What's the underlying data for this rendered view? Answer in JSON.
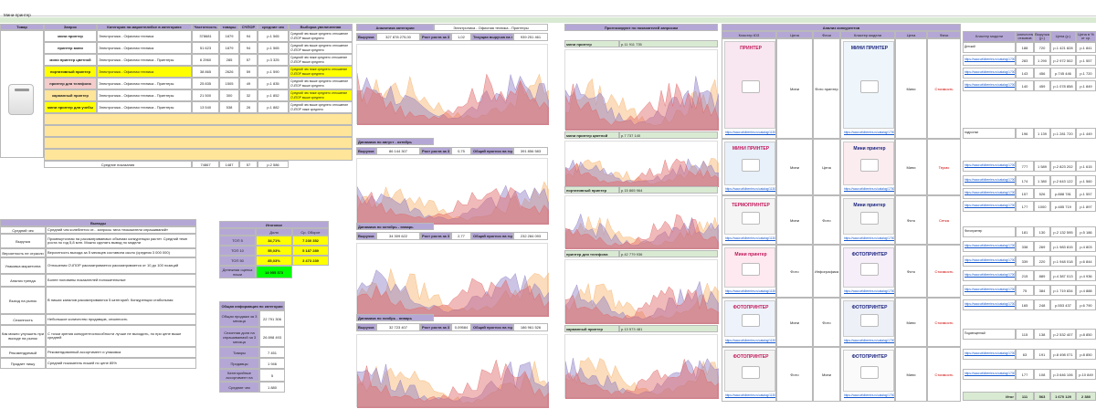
{
  "window": {
    "title_bar_color": "#ffffff",
    "sheet_title": "Мини-принтер"
  },
  "left_table": {
    "col_headers": [
      "Товар",
      "Запрос",
      "Категория на маркетплейсе в категориях",
      "Категория",
      "Частотность",
      "товары",
      "СЧПОР",
      "средние чек",
      "Выборка увеличенная"
    ],
    "rows": [
      {
        "query": "мини принтер",
        "category": "Электроника - Офисная техника",
        "freq": "378681",
        "goods": "1879",
        "spp": "94",
        "price": "р.1 565",
        "note": "Средний чек выше среднего отношение СЧПОР выше среднего"
      },
      {
        "query": "принтер мини",
        "category": "Электроника - Офисная техника",
        "freq": "51 623",
        "goods": "1879",
        "spp": "94",
        "price": "р.1 565",
        "note": "Средний чек выше среднего отношение СЧПОР выше среднего"
      },
      {
        "query": "мини принтер цветной",
        "category": "Электроника - Офисная техника - Принтеры",
        "freq": "6 2960",
        "goods": "285",
        "spp": "57",
        "price": "р.3 325",
        "note": "Средний чек ниже среднего отношение СЧПОР выше среднего"
      },
      {
        "query": "портативный принтер",
        "category": "Электроника - Офисная техника",
        "freq": "38 865",
        "goods": "2626",
        "spp": "59",
        "price": "р.1 590",
        "note": "Средний чек ниже среднего отношение СЧПОР выше среднего"
      },
      {
        "query": "принтер для телефона",
        "category": "Электроника - Офисная техника - Принтеры",
        "freq": "25 835",
        "goods": "1505",
        "spp": "49",
        "price": "р.1 835",
        "note": "Средний чек выше среднего отношение СЧПОР выше среднего"
      },
      {
        "query": "карманный принтер",
        "category": "Электроника - Офисная техника - Принтеры",
        "freq": "21 500",
        "goods": "300",
        "spp": "32",
        "price": "р.1 852",
        "note": "Средний чек ниже среднего отношение СЧПОР выше среднего"
      },
      {
        "query": "мини принтер для учебы",
        "category": "Электроника - Офисная техника - Принтеры",
        "freq": "13 540",
        "goods": "538",
        "spp": "26",
        "price": "р.1 882",
        "note": "Средний чек выше среднего отношение СЧПОР ниже среднего"
      }
    ],
    "avg_label": "Средние показания",
    "avg": {
      "freq": "74867",
      "goods": "1487",
      "spp": "57",
      "price": "р.2 586"
    }
  },
  "notes": {
    "title": "Выводы",
    "rows": [
      {
        "k": "Средний чек",
        "v": "Средний чек колеблется от... запросы типа «показатели спрашиваний»"
      },
      {
        "k": "Выручка",
        "v": "Промежуточная на рассматриваемых объемах конкуренции растет. Средний темп роста по год 5,8 млн. Можно сделать вывод по модели"
      },
      {
        "k": "Вероятность не отрасли",
        "v": "Вероятность выхода за 5 месяцев составила около (средняя 3 000 000)"
      },
      {
        "k": "Упаковка маркетинга",
        "v": "Отношения СЧПОР рассматривается рассматривается от 10 до 100 позиций"
      },
      {
        "k": "Анализ тренда",
        "v": "Более половины показателей положительные"
      },
      {
        "k": "Выход на рынок",
        "v": "В нишах каналов рассматриваются 5 категорий. Конкуренции стабильная"
      },
      {
        "k": "Сезонность",
        "v": "Небольшое количество продавцов, сезонность"
      },
      {
        "k": "Как можно улучшить при выходе на рынок",
        "v": "С точки зрения конкурентоспособности лучше не выходить, но при цене выше средней"
      },
      {
        "k": "Рекомендуемый",
        "v": "Рекомендованный ассортимент и упаковка"
      },
      {
        "k": "Продает нишу",
        "v": "Средний показатель нишей по цене 85%"
      }
    ]
  },
  "summary": {
    "title": "Итоговое",
    "headers": [
      "",
      "Доля",
      "Ср. Оборот"
    ],
    "rows": [
      {
        "k": "ТОП 5",
        "share": "34,71%",
        "turnover": "7 230 352"
      },
      {
        "k": "ТОП 10",
        "share": "55,03%",
        "turnover": "5 187 289"
      },
      {
        "k": "ТОП 50",
        "share": "85,03%",
        "turnover": "3 473 239"
      }
    ],
    "avg_k": "Денежная оценка ниши",
    "avg_v": "14 955 373"
  },
  "general": {
    "title": "Общая информация по категории",
    "rows": [
      {
        "k": "Общая продажи за 3 месяца",
        "v": "22 791 306"
      },
      {
        "k": "Сезонная доля на спрашиваемой за 3 месяца",
        "v": "26 898 493"
      },
      {
        "k": "Товары",
        "v": "7 451"
      },
      {
        "k": "Продавцы",
        "v": "1 946"
      },
      {
        "k": "Категорийные ассортимент на",
        "v": "5"
      },
      {
        "k": "Средние чек",
        "v": "1 880"
      }
    ]
  },
  "mid_panel": {
    "title": "Аналитика категории",
    "title2": "Электроника - Офисная техника - Принтеры",
    "blocks": [
      {
        "period": "Динамика по сентябрь - ноябрь",
        "rev_label": "Выручка",
        "rev": "327 878 275,00",
        "growth_label": "Рост роста за 3 мес",
        "growth": "1,02",
        "year_label": "Текущая выручка на год",
        "year": "939 251 461"
      },
      {
        "period": "Динамика по август - октябрь",
        "rev_label": "Выручка",
        "rev": "86 144 307",
        "growth_label": "Рост роста за 3 мес",
        "growth": "0,75",
        "year_label": "Общий прогноз на год",
        "year": "391 856 583"
      },
      {
        "period": "Динамика по октябрь - январь",
        "rev_label": "Выручка",
        "rev": "34 309 622",
        "growth_label": "Рост роста за 3 мес",
        "growth": "2,77",
        "year_label": "Общий прогноз на год",
        "year": "232 284 093"
      },
      {
        "period": "Динамика по ноябрь - январь",
        "rev_label": "Выручка",
        "rev": "32 723 407",
        "growth_label": "Рост роста за 3 мес",
        "growth": "0,09584",
        "year_label": "Общий прогноз на год",
        "year": "186 961 526"
      }
    ]
  },
  "trend_panel": {
    "title": "Прогнозируют по показателей запросам",
    "items": [
      {
        "q": "мини принтер",
        "v": "р.11 911 735"
      },
      {
        "q": "мини принтер цветной",
        "v": "р.7 737 140"
      },
      {
        "q": "портативный принтер",
        "v": "р.15 865 964"
      },
      {
        "q": "принтер для телефона",
        "v": "р.42 779 936"
      },
      {
        "q": "карманный принтер",
        "v": "р.13 573 481"
      }
    ]
  },
  "competitors": {
    "title": "Анализ конкурентов",
    "headers": [
      "Кластер ЮЗ",
      "Цена",
      "Фичи",
      "Кластер модели",
      "Цена",
      "Фичи"
    ],
    "rows": [
      {
        "link": "https://www.wildberries.ru/catalog/1130971/detail.aspx",
        "a": "Мини",
        "b": "Фото принтер",
        "tag": "Стоимость",
        "link2": "https://www.wildberries.ru/catalog/1700175/detail.aspx",
        "c": "Мини",
        "d": "Стоимость"
      },
      {
        "link": "https://www.wildberries.ru/catalog/1130971/detail.aspx",
        "a": "Мини",
        "b": "Цена",
        "tag": "Детская",
        "link2": "https://www.wildberries.ru/catalog/1700175/detail.aspx",
        "c": "Мини",
        "d": "Термо"
      },
      {
        "link": "https://www.wildberries.ru/catalog/1130971/detail.aspx",
        "a": "Мини",
        "b": "Фото",
        "tag": "Недорогой",
        "link2": "https://www.wildberries.ru/catalog/1700175/detail.aspx",
        "c": "Фото",
        "d": "Сетка"
      },
      {
        "link": "https://www.wildberries.ru/catalog/1130971/detail.aspx",
        "a": "Фото",
        "b": "Инфографика",
        "tag": "Стоимость",
        "link2": "https://www.wildberries.ru/catalog/1700175/detail.aspx",
        "c": "Фото",
        "d": "Стоимость"
      },
      {
        "link": "https://www.wildberries.ru/catalog/1130971/detail.aspx",
        "a": "Мини",
        "b": "Фото",
        "tag": "Инфографика",
        "link2": "https://www.wildberries.ru/catalog/1700175/detail.aspx",
        "c": "Мини",
        "d": "Стоимость"
      },
      {
        "link": "https://www.wildberries.ru/catalog/1130971/detail.aspx",
        "a": "Фото",
        "b": "Мини",
        "tag": "Детская",
        "link2": "https://www.wildberries.ru/catalog/1700175/detail.aspx",
        "c": "Мини",
        "d": "Стоимость"
      }
    ],
    "thumb_texts": [
      "ПРИНТЕР",
      "МИНИ ПРИНТЕР",
      "ТЕРМОПРИНТЕР",
      "Мини принтер",
      "ФОТОПРИНТЕР"
    ]
  },
  "right_table": {
    "headers": [
      "Кластер модели",
      "Количество отзывов",
      "Выручка (р.)",
      "Цена (р.)",
      "Цена в % от ср."
    ],
    "rows": [
      {
        "name": "Детский",
        "a": "188",
        "b": "720",
        "c": "р.1 421 828",
        "d": "р.1 841"
      },
      {
        "name": "https://www.wildberries.ru/catalog/1700175/detail.aspx",
        "a": "283",
        "b": "1 290",
        "c": "р.2 972 502",
        "d": "р.1 557"
      },
      {
        "name": "https://www.wildberries.ru/catalog/1700175/detail.aspx",
        "a": "143",
        "b": "456",
        "c": "р.745 446",
        "d": "р.1 720"
      },
      {
        "name": "https://www.wildberries.ru/catalog/1700175/detail.aspx",
        "a": "140",
        "b": "459",
        "c": "р.1 078 858",
        "d": "р.1 849"
      },
      {
        "name": "подростки",
        "a": "196",
        "b": "1 139",
        "c": "р.1 281 720",
        "d": "р.1 449"
      },
      {
        "name": "https://www.wildberries.ru/catalog/1700175/detail.aspx",
        "a": "777",
        "b": "1 589",
        "c": "р.2 823 202",
        "d": "р.1 615"
      },
      {
        "name": "https://www.wildberries.ru/catalog/1700175/detail.aspx",
        "a": "174",
        "b": "1 380",
        "c": "р.2 643 122",
        "d": "р.1 560"
      },
      {
        "name": "https://www.wildberries.ru/catalog/1700175/detail.aspx",
        "a": "157",
        "b": "526",
        "c": "р.888 781",
        "d": "р.1 557"
      },
      {
        "name": "https://www.wildberries.ru/catalog/1700175/detail.aspx",
        "a": "177",
        "b": "1000",
        "c": "р.485 719",
        "d": "р.1 897"
      },
      {
        "name": "Фотопринтер",
        "a": "181",
        "b": "130",
        "c": "р.2 132 595",
        "d": "р.5 186"
      },
      {
        "name": "https://www.wildberries.ru/catalog/1700175/detail.aspx",
        "a": "338",
        "b": "269",
        "c": "р.1 983 815",
        "d": "р.4 803"
      },
      {
        "name": "https://www.wildberries.ru/catalog/1700175/detail.aspx",
        "a": "339",
        "b": "220",
        "c": "р.1 948 018",
        "d": "р.6 844"
      },
      {
        "name": "https://www.wildberries.ru/catalog/1700175/detail.aspx",
        "a": "215",
        "b": "889",
        "c": "р.4 387 013",
        "d": "р.4 936"
      },
      {
        "name": "https://www.wildberries.ru/catalog/1700175/detail.aspx",
        "a": "75",
        "b": "384",
        "c": "р.1 719 834",
        "d": "р.4 888"
      },
      {
        "name": "https://www.wildberries.ru/catalog/1700175/detail.aspx",
        "a": "165",
        "b": "248",
        "c": "р.553 437",
        "d": "р.6 790"
      },
      {
        "name": "Подсвещенный",
        "a": "115",
        "b": "138",
        "c": "р.2 532 407",
        "d": "р.8 850"
      },
      {
        "name": "https://www.wildberries.ru/catalog/1700175/detail.aspx",
        "a": "63",
        "b": "191",
        "c": "р.8 498 071",
        "d": "р.8 850"
      },
      {
        "name": "https://www.wildberries.ru/catalog/1700175/detail.aspx",
        "a": "177",
        "b": "108",
        "c": "р.3 646 106",
        "d": "р.10 849"
      }
    ],
    "total_label": "Итог",
    "total": {
      "a": "111",
      "b": "563",
      "c": "1 670 129",
      "d": "2 380"
    }
  },
  "colors": {
    "header": "#b4a7d6",
    "yellow": "#ffff00",
    "pink": "#f4cccc",
    "green_light": "#d9ead3",
    "green": "#00ff00",
    "orange": "#ffe599"
  }
}
